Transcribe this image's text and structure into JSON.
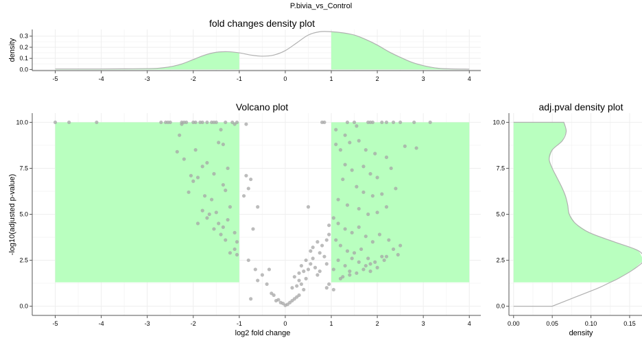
{
  "figure": {
    "title": "P.bivia_vs_Control"
  },
  "colors": {
    "highlight_fill": "#b9ffbf",
    "highlight_stroke": "#9fe6a6",
    "point": "#a6a6a6",
    "curve": "#b0b0b0",
    "grid": "#eeeeee",
    "grid_minor": "#f6f6f6",
    "axis": "#555555"
  },
  "chart_data": [
    {
      "type": "area",
      "title": "fold changes density plot",
      "xlabel": "",
      "ylabel": "density",
      "xlim": [
        -5.5,
        4.25
      ],
      "ylim": [
        -0.01,
        0.36
      ],
      "xticks": [
        -5,
        -4,
        -3,
        -2,
        -1,
        0,
        1,
        2,
        3,
        4
      ],
      "yticks": [
        0.0,
        0.1,
        0.2,
        0.3
      ],
      "ytick_labels": [
        "0.0",
        "0.1",
        "0.2",
        "0.3"
      ],
      "highlight_ranges": [
        [
          -5,
          -1
        ],
        [
          1,
          4
        ]
      ],
      "x": [
        -5.0,
        -4.5,
        -4.0,
        -3.5,
        -3.0,
        -2.75,
        -2.5,
        -2.25,
        -2.0,
        -1.75,
        -1.5,
        -1.25,
        -1.0,
        -0.75,
        -0.5,
        -0.25,
        0.0,
        0.25,
        0.5,
        0.75,
        1.0,
        1.25,
        1.5,
        1.75,
        2.0,
        2.25,
        2.5,
        2.75,
        3.0,
        3.25,
        3.5,
        4.0
      ],
      "y": [
        0.005,
        0.005,
        0.005,
        0.006,
        0.008,
        0.012,
        0.025,
        0.05,
        0.09,
        0.13,
        0.155,
        0.16,
        0.15,
        0.13,
        0.12,
        0.13,
        0.17,
        0.24,
        0.31,
        0.34,
        0.34,
        0.33,
        0.31,
        0.27,
        0.22,
        0.16,
        0.11,
        0.065,
        0.035,
        0.015,
        0.007,
        0.003
      ],
      "grid": true
    },
    {
      "type": "scatter",
      "title": "Volcano plot",
      "xlabel": "log2 fold change",
      "ylabel": "-log10(adjusted p-value)",
      "xlim": [
        -5.5,
        4.25
      ],
      "ylim": [
        -0.5,
        10.5
      ],
      "xticks": [
        -5,
        -4,
        -3,
        -2,
        -1,
        0,
        1,
        2,
        3,
        4
      ],
      "yticks": [
        0.0,
        2.5,
        5.0,
        7.5,
        10.0
      ],
      "ytick_labels": [
        "0.0",
        "2.5",
        "5.0",
        "7.5",
        "10.0"
      ],
      "highlight_rects": [
        {
          "x": [
            -5,
            -1
          ],
          "y": [
            1.3,
            10
          ]
        },
        {
          "x": [
            1,
            4
          ],
          "y": [
            1.3,
            10
          ]
        }
      ],
      "grid": true,
      "points": [
        [
          -5.0,
          10.0
        ],
        [
          -4.7,
          10.0
        ],
        [
          -4.1,
          10.0
        ],
        [
          -2.7,
          10.0
        ],
        [
          -2.6,
          10.0
        ],
        [
          -2.55,
          10.0
        ],
        [
          -2.5,
          10.0
        ],
        [
          -2.25,
          10.0
        ],
        [
          -2.2,
          10.0
        ],
        [
          -2.15,
          10.0
        ],
        [
          -2.0,
          10.0
        ],
        [
          -1.95,
          10.0
        ],
        [
          -1.85,
          10.0
        ],
        [
          -1.8,
          10.0
        ],
        [
          -1.7,
          10.0
        ],
        [
          -1.6,
          10.0
        ],
        [
          -1.55,
          10.0
        ],
        [
          -1.5,
          10.0
        ],
        [
          -1.3,
          10.0
        ],
        [
          -1.15,
          10.0
        ],
        [
          -1.1,
          9.9
        ],
        [
          -1.05,
          10.0
        ],
        [
          -2.25,
          9.9
        ],
        [
          -2.3,
          9.3
        ],
        [
          -1.4,
          9.6
        ],
        [
          -1.45,
          8.9
        ],
        [
          -1.35,
          8.8
        ],
        [
          -2.35,
          8.4
        ],
        [
          -2.2,
          8.0
        ],
        [
          -1.95,
          8.5
        ],
        [
          -1.7,
          7.8
        ],
        [
          -1.8,
          7.6
        ],
        [
          -2.05,
          7.1
        ],
        [
          -1.9,
          7.0
        ],
        [
          -2.0,
          6.8
        ],
        [
          -1.55,
          7.2
        ],
        [
          -1.25,
          7.5
        ],
        [
          -1.35,
          6.6
        ],
        [
          -2.1,
          6.2
        ],
        [
          -1.75,
          6.0
        ],
        [
          -1.6,
          5.8
        ],
        [
          -1.3,
          6.3
        ],
        [
          -1.2,
          5.4
        ],
        [
          -1.5,
          5.1
        ],
        [
          -1.65,
          5.0
        ],
        [
          -1.7,
          4.8
        ],
        [
          -1.45,
          4.5
        ],
        [
          -1.35,
          4.3
        ],
        [
          -1.25,
          4.7
        ],
        [
          -1.4,
          3.9
        ],
        [
          -1.55,
          4.2
        ],
        [
          -1.9,
          4.5
        ],
        [
          -1.8,
          5.2
        ],
        [
          -1.1,
          4.0
        ],
        [
          -1.05,
          3.5
        ],
        [
          -1.1,
          3.1
        ],
        [
          -1.05,
          2.8
        ],
        [
          -1.2,
          2.9
        ],
        [
          -1.3,
          3.6
        ],
        [
          -0.85,
          9.9
        ],
        [
          -0.85,
          7.1
        ],
        [
          -0.75,
          6.9
        ],
        [
          -0.8,
          6.4
        ],
        [
          -0.9,
          6.0
        ],
        [
          -0.7,
          4.2
        ],
        [
          -0.6,
          5.4
        ],
        [
          -0.8,
          2.5
        ],
        [
          -0.75,
          0.4
        ],
        [
          -0.65,
          2.0
        ],
        [
          -0.6,
          1.4
        ],
        [
          -0.5,
          1.7
        ],
        [
          -0.4,
          1.2
        ],
        [
          -0.35,
          2.0
        ],
        [
          -0.3,
          0.7
        ],
        [
          -0.25,
          0.6
        ],
        [
          -0.2,
          0.3
        ],
        [
          -0.15,
          0.35
        ],
        [
          -0.1,
          0.2
        ],
        [
          -0.05,
          0.15
        ],
        [
          0.0,
          0.05
        ],
        [
          0.05,
          0.1
        ],
        [
          0.1,
          0.2
        ],
        [
          0.15,
          0.3
        ],
        [
          0.2,
          0.4
        ],
        [
          0.25,
          0.5
        ],
        [
          0.3,
          0.6
        ],
        [
          0.15,
          1.0
        ],
        [
          0.2,
          1.6
        ],
        [
          0.3,
          1.8
        ],
        [
          0.35,
          1.2
        ],
        [
          0.4,
          0.9
        ],
        [
          0.45,
          1.5
        ],
        [
          0.5,
          2.0
        ],
        [
          0.55,
          2.3
        ],
        [
          0.6,
          2.6
        ],
        [
          0.65,
          2.1
        ],
        [
          0.7,
          1.7
        ],
        [
          0.75,
          2.9
        ],
        [
          0.8,
          3.3
        ],
        [
          0.85,
          2.7
        ],
        [
          0.9,
          3.6
        ],
        [
          0.95,
          3.9
        ],
        [
          0.55,
          3.0
        ],
        [
          0.45,
          2.5
        ],
        [
          0.35,
          2.2
        ],
        [
          0.3,
          1.4
        ],
        [
          0.5,
          5.4
        ],
        [
          0.8,
          10.0
        ],
        [
          0.85,
          10.0
        ],
        [
          0.9,
          1.0
        ],
        [
          0.95,
          1.2
        ],
        [
          0.7,
          3.5
        ],
        [
          0.6,
          3.2
        ],
        [
          0.95,
          4.4
        ],
        [
          0.9,
          2.3
        ],
        [
          0.75,
          1.9
        ],
        [
          1.05,
          0.9
        ],
        [
          0.25,
          1.1
        ],
        [
          0.4,
          1.9
        ],
        [
          1.1,
          9.6
        ],
        [
          1.3,
          9.3
        ],
        [
          1.35,
          10.0
        ],
        [
          1.5,
          10.0
        ],
        [
          1.55,
          9.8
        ],
        [
          1.8,
          10.0
        ],
        [
          1.85,
          10.0
        ],
        [
          1.9,
          10.0
        ],
        [
          2.1,
          10.0
        ],
        [
          2.2,
          10.0
        ],
        [
          2.35,
          10.0
        ],
        [
          2.5,
          10.0
        ],
        [
          2.8,
          10.0
        ],
        [
          3.15,
          10.0
        ],
        [
          1.1,
          8.8
        ],
        [
          1.2,
          8.5
        ],
        [
          1.4,
          8.9
        ],
        [
          1.6,
          9.0
        ],
        [
          1.75,
          8.5
        ],
        [
          1.95,
          8.3
        ],
        [
          2.2,
          8.1
        ],
        [
          2.6,
          8.7
        ],
        [
          2.85,
          8.6
        ],
        [
          1.3,
          7.7
        ],
        [
          1.45,
          7.4
        ],
        [
          1.7,
          7.6
        ],
        [
          1.85,
          7.2
        ],
        [
          2.0,
          7.0
        ],
        [
          2.3,
          7.5
        ],
        [
          1.25,
          6.9
        ],
        [
          1.55,
          6.5
        ],
        [
          1.7,
          6.2
        ],
        [
          1.9,
          6.0
        ],
        [
          2.1,
          6.1
        ],
        [
          2.4,
          6.4
        ],
        [
          1.15,
          5.8
        ],
        [
          1.35,
          5.5
        ],
        [
          1.6,
          5.3
        ],
        [
          1.8,
          5.0
        ],
        [
          2.0,
          5.1
        ],
        [
          2.2,
          5.4
        ],
        [
          1.05,
          4.8
        ],
        [
          1.15,
          4.5
        ],
        [
          1.3,
          4.2
        ],
        [
          1.45,
          4.0
        ],
        [
          1.6,
          4.3
        ],
        [
          1.75,
          3.8
        ],
        [
          1.9,
          3.5
        ],
        [
          2.05,
          3.9
        ],
        [
          2.25,
          3.6
        ],
        [
          2.35,
          3.1
        ],
        [
          2.45,
          2.8
        ],
        [
          1.1,
          3.6
        ],
        [
          1.2,
          3.3
        ],
        [
          1.35,
          3.0
        ],
        [
          1.5,
          2.9
        ],
        [
          1.65,
          3.1
        ],
        [
          1.8,
          2.6
        ],
        [
          1.95,
          2.4
        ],
        [
          2.1,
          2.7
        ],
        [
          1.15,
          2.5
        ],
        [
          1.3,
          2.2
        ],
        [
          1.4,
          1.9
        ],
        [
          1.55,
          1.8
        ],
        [
          1.7,
          2.0
        ],
        [
          1.85,
          2.3
        ],
        [
          2.0,
          2.1
        ],
        [
          1.25,
          1.6
        ],
        [
          1.45,
          2.6
        ],
        [
          1.6,
          2.4
        ],
        [
          1.75,
          2.2
        ],
        [
          2.15,
          2.5
        ],
        [
          1.05,
          2.0
        ],
        [
          1.2,
          1.5
        ],
        [
          1.4,
          1.7
        ],
        [
          1.85,
          1.9
        ],
        [
          2.2,
          2.7
        ],
        [
          2.5,
          3.3
        ]
      ]
    },
    {
      "type": "area",
      "title": "adj.pval density plot",
      "xlabel": "density",
      "ylabel": "",
      "xlim": [
        -0.006,
        0.166
      ],
      "ylim": [
        -0.5,
        10.5
      ],
      "xticks": [
        0.0,
        0.05,
        0.1,
        0.15
      ],
      "xtick_labels": [
        "0.00",
        "0.05",
        "0.10",
        "0.15"
      ],
      "yticks": [
        0.0,
        2.5,
        5.0,
        7.5,
        10.0
      ],
      "ytick_labels": [
        "0.0",
        "2.5",
        "5.0",
        "7.5",
        "10.0"
      ],
      "orientation": "horizontal",
      "highlight_range_y": [
        1.3,
        10.0
      ],
      "y": [
        0.0,
        0.5,
        1.0,
        1.3,
        1.5,
        2.0,
        2.5,
        3.0,
        3.5,
        4.0,
        4.5,
        5.0,
        5.5,
        6.0,
        6.5,
        7.0,
        7.5,
        8.0,
        8.5,
        9.0,
        9.5,
        10.0
      ],
      "density": [
        0.05,
        0.08,
        0.11,
        0.125,
        0.135,
        0.155,
        0.168,
        0.162,
        0.13,
        0.098,
        0.08,
        0.072,
        0.07,
        0.067,
        0.062,
        0.056,
        0.05,
        0.046,
        0.05,
        0.063,
        0.068,
        0.065
      ],
      "grid": true
    }
  ]
}
